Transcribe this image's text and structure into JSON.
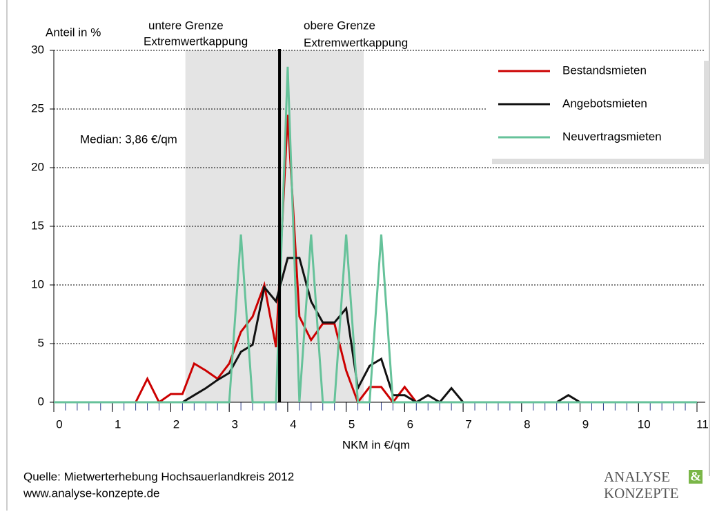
{
  "chart_data": {
    "type": "line",
    "y_label": "Anteil in %",
    "x_label": "NKM in €/qm",
    "x": [
      0,
      0.2,
      0.4,
      0.6,
      0.8,
      1,
      1.2,
      1.4,
      1.6,
      1.8,
      2,
      2.2,
      2.4,
      2.6,
      2.8,
      3,
      3.2,
      3.4,
      3.6,
      3.8,
      4,
      4.2,
      4.4,
      4.6,
      4.8,
      5,
      5.2,
      5.4,
      5.6,
      5.8,
      6,
      6.2,
      6.4,
      6.6,
      6.8,
      7,
      7.2,
      7.4,
      7.6,
      7.8,
      8,
      8.2,
      8.4,
      8.6,
      8.8,
      9,
      9.2,
      9.4,
      9.6,
      9.8,
      10,
      10.2,
      10.4,
      10.6,
      10.8,
      11
    ],
    "series": [
      {
        "name": "Bestandsmieten",
        "color": "#cc0000",
        "values": [
          0,
          0,
          0,
          0,
          0,
          0,
          0,
          0,
          2,
          0,
          0.7,
          0.7,
          3.3,
          2.7,
          2,
          3.3,
          6,
          7.3,
          10,
          4.7,
          24.5,
          7.3,
          5.3,
          6.7,
          6.7,
          2.7,
          0,
          1.3,
          1.3,
          0,
          1.3,
          0,
          0,
          0,
          0,
          0,
          0,
          0,
          0,
          0,
          0,
          0,
          0,
          0,
          0,
          0,
          0,
          0,
          0,
          0,
          0,
          0,
          0,
          0,
          0,
          0
        ]
      },
      {
        "name": "Angebotsmieten",
        "color": "#111111",
        "values": [
          0,
          0,
          0,
          0,
          0,
          0,
          0,
          0,
          0,
          0,
          0,
          0,
          0.6,
          1.2,
          1.9,
          2.5,
          4.3,
          4.9,
          9.8,
          8.6,
          12.3,
          12.3,
          8.6,
          6.8,
          6.8,
          8,
          1.2,
          3.1,
          3.7,
          0.6,
          0.6,
          0,
          0.6,
          0,
          1.2,
          0,
          0,
          0,
          0,
          0,
          0,
          0,
          0,
          0,
          0.6,
          0,
          0,
          0,
          0,
          0,
          0,
          0,
          0,
          0,
          0,
          0
        ]
      },
      {
        "name": "Neuvertragsmieten",
        "color": "#66c29a",
        "values": [
          0,
          0,
          0,
          0,
          0,
          0,
          0,
          0,
          0,
          0,
          0,
          0,
          0,
          0,
          0,
          0,
          14.3,
          0,
          0,
          0,
          28.6,
          0,
          14.3,
          0,
          0,
          14.3,
          0,
          0,
          14.3,
          0,
          0,
          0,
          0,
          0,
          0,
          0,
          0,
          0,
          0,
          0,
          0,
          0,
          0,
          0,
          0,
          0,
          0,
          0,
          0,
          0,
          0,
          0,
          0,
          0,
          0,
          0
        ]
      }
    ],
    "xlim": [
      0,
      11
    ],
    "xticks": [
      0,
      1,
      2,
      3,
      4,
      5,
      6,
      7,
      8,
      9,
      10,
      11
    ],
    "ylim": [
      0,
      30
    ],
    "yticks": [
      0,
      5,
      10,
      15,
      20,
      25,
      30
    ],
    "grid": true,
    "band": {
      "from": 2.25,
      "to": 5.3,
      "color": "#e4e4e4",
      "lower_label": [
        "untere Grenze",
        "Extremwertkappung"
      ],
      "upper_label": [
        "obere Grenze",
        "Extremwertkappung"
      ]
    },
    "median": {
      "x": 3.86,
      "label": "Median: 3,86 €/qm"
    },
    "legend": "upper right",
    "source": [
      "Quelle: Mietwerterhebung Hochsauerlandkreis 2012",
      "www.analyse-konzepte.de"
    ],
    "logo": [
      "ANALYSE",
      "&",
      "KONZEPTE"
    ]
  }
}
